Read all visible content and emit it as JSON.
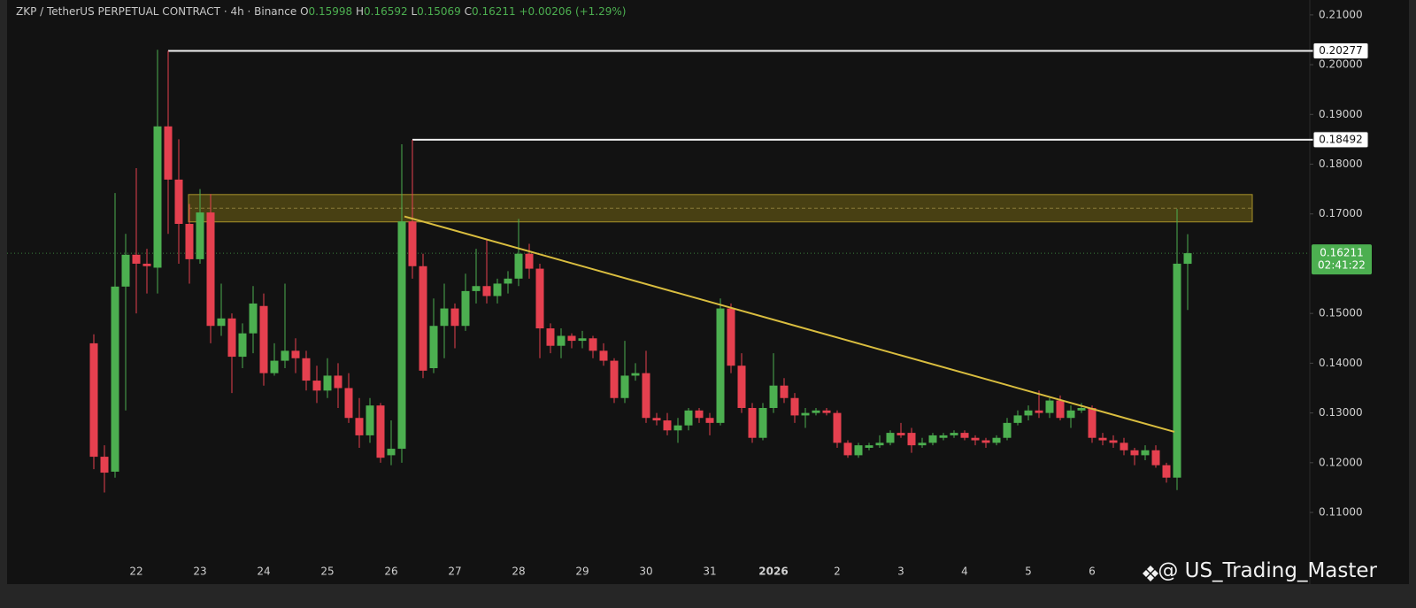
{
  "chart_data": {
    "type": "candlestick",
    "title": "ZKP / TetherUS PERPETUAL CONTRACT · 4h · Binance",
    "legend_ohlc": [
      {
        "label": "O",
        "value": 0.15998
      },
      {
        "label": "H",
        "value": 0.16592
      },
      {
        "label": "L",
        "value": 0.15069
      },
      {
        "label": "C",
        "value": 0.16211
      }
    ],
    "change": "+0.00206 (+1.29%)",
    "categories": [
      null,
      null,
      null,
      null,
      "22",
      null,
      null,
      null,
      null,
      null,
      "23",
      null,
      null,
      null,
      null,
      null,
      "24",
      null,
      null,
      null,
      null,
      null,
      "25",
      null,
      null,
      null,
      null,
      null,
      "26",
      null,
      null,
      null,
      null,
      null,
      "27",
      null,
      null,
      null,
      null,
      null,
      "28",
      null,
      null,
      null,
      null,
      null,
      "29",
      null,
      null,
      null,
      null,
      null,
      "30",
      null,
      null,
      null,
      null,
      null,
      "31",
      null,
      null,
      null,
      null,
      null,
      "2026",
      null,
      null,
      null,
      null,
      null,
      "2",
      null,
      null,
      null,
      null,
      null,
      "3",
      null,
      null,
      null,
      null,
      null,
      "4",
      null,
      null,
      null,
      null,
      null,
      "5",
      null,
      null,
      null,
      null,
      null,
      "6",
      null,
      null,
      null,
      null,
      null,
      null,
      null,
      null,
      null
    ],
    "open": [
      0.144,
      0.1212,
      0.1182,
      0.1554,
      0.1618,
      0.16,
      0.1592,
      0.1876,
      0.1769,
      0.168,
      0.1609,
      0.1703,
      0.1475,
      0.149,
      0.1413,
      0.146,
      0.1515,
      0.138,
      0.1405,
      0.1425,
      0.141,
      0.1365,
      0.1345,
      0.1375,
      0.135,
      0.129,
      0.1255,
      0.1315,
      0.1215,
      0.1228,
      0.1685,
      0.1595,
      0.139,
      0.1475,
      0.151,
      0.1475,
      0.1545,
      0.1555,
      0.1535,
      0.156,
      0.157,
      0.162,
      0.159,
      0.147,
      0.1435,
      0.1455,
      0.1445,
      0.145,
      0.1425,
      0.1405,
      0.133,
      0.1375,
      0.138,
      0.129,
      0.1285,
      0.1265,
      0.1275,
      0.1305,
      0.129,
      0.128,
      0.151,
      0.1395,
      0.131,
      0.125,
      0.131,
      0.1355,
      0.133,
      0.1295,
      0.13,
      0.1305,
      0.13,
      0.124,
      0.1215,
      0.123,
      0.1235,
      0.124,
      0.126,
      0.126,
      0.1235,
      0.124,
      0.125,
      0.1255,
      0.126,
      0.125,
      0.1245,
      0.124,
      0.125,
      0.128,
      0.1295,
      0.1305,
      0.13,
      0.1325,
      0.129,
      0.1305,
      0.131,
      0.125,
      0.1245,
      0.124,
      0.1225,
      0.1215,
      0.1225,
      0.1195,
      0.117,
      0.15998
    ],
    "high": [
      0.1458,
      0.1235,
      0.1742,
      0.166,
      0.1792,
      0.163,
      0.203,
      0.2028,
      0.185,
      0.172,
      0.175,
      0.174,
      0.156,
      0.15,
      0.148,
      0.1555,
      0.154,
      0.144,
      0.156,
      0.145,
      0.1425,
      0.1395,
      0.141,
      0.14,
      0.138,
      0.133,
      0.133,
      0.132,
      0.1285,
      0.184,
      0.1849,
      0.162,
      0.153,
      0.156,
      0.152,
      0.158,
      0.163,
      0.165,
      0.157,
      0.1585,
      0.169,
      0.164,
      0.16,
      0.148,
      0.147,
      0.146,
      0.1465,
      0.1455,
      0.144,
      0.141,
      0.1445,
      0.14,
      0.1425,
      0.13,
      0.13,
      0.129,
      0.131,
      0.131,
      0.13,
      0.153,
      0.152,
      0.142,
      0.132,
      0.132,
      0.142,
      0.137,
      0.134,
      0.131,
      0.131,
      0.131,
      0.1305,
      0.1245,
      0.124,
      0.124,
      0.1255,
      0.1265,
      0.128,
      0.127,
      0.125,
      0.126,
      0.126,
      0.1265,
      0.1265,
      0.1255,
      0.125,
      0.1255,
      0.129,
      0.1305,
      0.1315,
      0.1345,
      0.133,
      0.1335,
      0.1315,
      0.132,
      0.1315,
      0.126,
      0.1255,
      0.125,
      0.123,
      0.1235,
      0.1235,
      0.12,
      0.171,
      0.16592
    ],
    "low": [
      0.1187,
      0.114,
      0.117,
      0.1305,
      0.15,
      0.154,
      0.154,
      0.166,
      0.16,
      0.156,
      0.16,
      0.144,
      0.1455,
      0.134,
      0.139,
      0.142,
      0.1355,
      0.1375,
      0.139,
      0.138,
      0.1345,
      0.132,
      0.133,
      0.131,
      0.128,
      0.123,
      0.124,
      0.12,
      0.1195,
      0.12,
      0.157,
      0.137,
      0.138,
      0.141,
      0.143,
      0.1465,
      0.152,
      0.152,
      0.152,
      0.154,
      0.1555,
      0.157,
      0.141,
      0.142,
      0.141,
      0.143,
      0.143,
      0.141,
      0.1395,
      0.132,
      0.132,
      0.1365,
      0.128,
      0.1275,
      0.1255,
      0.124,
      0.1265,
      0.128,
      0.1255,
      0.1275,
      0.138,
      0.13,
      0.124,
      0.1245,
      0.13,
      0.132,
      0.128,
      0.127,
      0.1295,
      0.1295,
      0.123,
      0.121,
      0.121,
      0.1225,
      0.123,
      0.1235,
      0.125,
      0.122,
      0.123,
      0.1235,
      0.1245,
      0.125,
      0.1245,
      0.1235,
      0.123,
      0.1235,
      0.1245,
      0.1275,
      0.1285,
      0.129,
      0.129,
      0.1285,
      0.127,
      0.13,
      0.124,
      0.1235,
      0.123,
      0.1215,
      0.1195,
      0.1205,
      0.119,
      0.116,
      0.1145,
      0.15069
    ],
    "close": [
      0.1212,
      0.118,
      0.1554,
      0.1618,
      0.16,
      0.1595,
      0.1876,
      0.1769,
      0.168,
      0.1609,
      0.1703,
      0.1475,
      0.149,
      0.1413,
      0.146,
      0.152,
      0.138,
      0.1405,
      0.1425,
      0.141,
      0.1365,
      0.1345,
      0.1375,
      0.135,
      0.129,
      0.1255,
      0.1315,
      0.121,
      0.1228,
      0.1685,
      0.1595,
      0.1385,
      0.1475,
      0.151,
      0.1475,
      0.1545,
      0.1555,
      0.1535,
      0.156,
      0.157,
      0.162,
      0.159,
      0.147,
      0.1435,
      0.1455,
      0.1445,
      0.145,
      0.1425,
      0.1405,
      0.133,
      0.1375,
      0.138,
      0.129,
      0.1285,
      0.1265,
      0.1275,
      0.1305,
      0.129,
      0.128,
      0.151,
      0.1395,
      0.131,
      0.125,
      0.131,
      0.1355,
      0.133,
      0.1295,
      0.13,
      0.1305,
      0.13,
      0.124,
      0.1215,
      0.1235,
      0.1235,
      0.124,
      0.126,
      0.1255,
      0.1235,
      0.124,
      0.1255,
      0.1255,
      0.126,
      0.125,
      0.1245,
      0.124,
      0.125,
      0.128,
      0.1295,
      0.1305,
      0.13,
      0.1325,
      0.129,
      0.1305,
      0.131,
      0.125,
      0.1245,
      0.124,
      0.1225,
      0.1215,
      0.1225,
      0.1195,
      0.117,
      0.16,
      0.16211
    ],
    "up_color": "#4caf50",
    "down_color": "#e5404f",
    "ylim": [
      0.0956,
      0.213
    ],
    "yticks": [
      {
        "value": 0.21,
        "label": "0.21000"
      },
      {
        "value": 0.2,
        "label": "0.20000"
      },
      {
        "value": 0.19,
        "label": "0.19000"
      },
      {
        "value": 0.18,
        "label": "0.18000"
      },
      {
        "value": 0.17,
        "label": "0.17000"
      },
      {
        "value": 0.15,
        "label": "0.15000"
      },
      {
        "value": 0.14,
        "label": "0.14000"
      },
      {
        "value": 0.13,
        "label": "0.13000"
      },
      {
        "value": 0.12,
        "label": "0.12000"
      },
      {
        "value": 0.11,
        "label": "0.11000"
      }
    ],
    "hlines": [
      0.20277,
      0.18492
    ],
    "zone": {
      "low": 0.1684,
      "high": 0.1739
    },
    "trendline": [
      0.1695,
      0.1262
    ],
    "last_price": 0.16211,
    "countdown": "02:41:22",
    "watermark": "@ US_Trading_Master"
  }
}
